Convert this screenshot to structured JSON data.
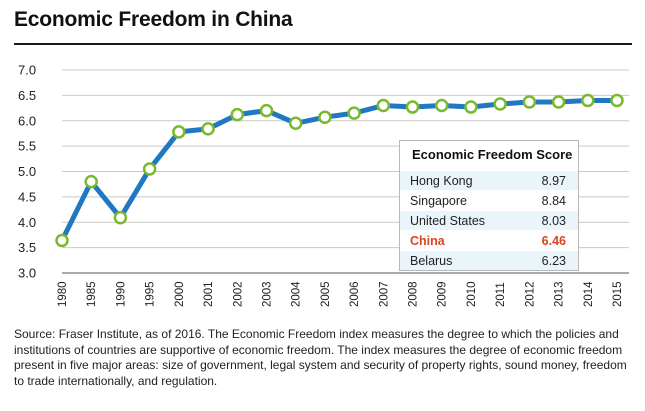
{
  "header": {
    "title": "Economic Freedom in China"
  },
  "chart_data": {
    "type": "line",
    "title": "Economic Freedom in China",
    "x": [
      "1980",
      "1985",
      "1990",
      "1995",
      "2000",
      "2001",
      "2002",
      "2003",
      "2004",
      "2005",
      "2006",
      "2007",
      "2008",
      "2009",
      "2010",
      "2011",
      "2012",
      "2013",
      "2014",
      "2015"
    ],
    "series": [
      {
        "values": [
          3.64,
          4.8,
          4.09,
          5.05,
          5.78,
          5.84,
          6.12,
          6.2,
          5.95,
          6.07,
          6.15,
          6.3,
          6.27,
          6.3,
          6.27,
          6.33,
          6.37,
          6.37,
          6.4,
          6.4
        ]
      }
    ],
    "y_ticks": [
      "7.0",
      "6.5",
      "6.0",
      "5.5",
      "5.0",
      "4.5",
      "4.0",
      "3.5",
      "3.0"
    ],
    "ylim": [
      3.0,
      7.0
    ],
    "xlabel": "",
    "ylabel": "",
    "grid": "horizontal",
    "colors": {
      "line": "#1f78c1",
      "marker_edge": "#7ab82c",
      "marker_fill": "#ffffff",
      "grid": "#c9c9c9",
      "highlight": "#d9431f"
    }
  },
  "legend": {
    "title": "Economic Freedom Score",
    "placement": "center-right",
    "rows": [
      {
        "country": "Hong Kong",
        "score": "8.97",
        "highlight": false
      },
      {
        "country": "Singapore",
        "score": "8.84",
        "highlight": false
      },
      {
        "country": "United States",
        "score": "8.03",
        "highlight": false
      },
      {
        "country": "China",
        "score": "6.46",
        "highlight": true
      },
      {
        "country": "Belarus",
        "score": "6.23",
        "highlight": false
      }
    ]
  },
  "footer": {
    "source": "Source: Fraser Institute, as of 2016. The Economic Freedom index measures the degree to which the policies and institutions of countries are supportive of economic freedom. The index measures the degree of economic freedom present in five major areas: size of government, legal system and security of property rights, sound money, freedom to trade internationally, and regulation."
  }
}
